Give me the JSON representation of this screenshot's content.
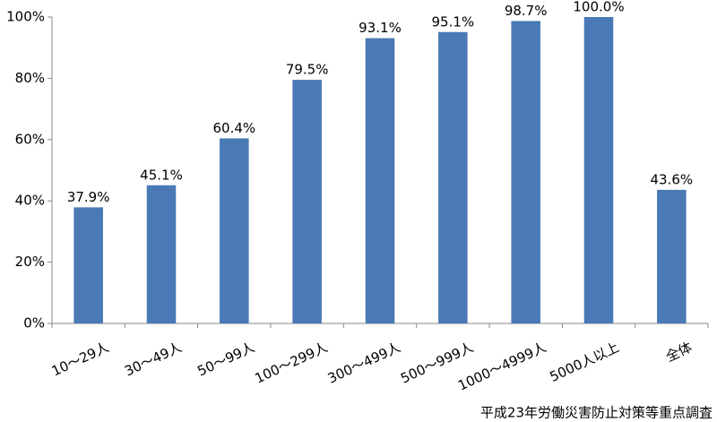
{
  "chart_data": {
    "type": "bar",
    "categories": [
      "10〜29人",
      "30〜49人",
      "50〜99人",
      "100〜299人",
      "300〜499人",
      "500〜999人",
      "1000〜4999人",
      "5000人以上",
      "全体"
    ],
    "values": [
      37.9,
      45.1,
      60.4,
      79.5,
      93.1,
      95.1,
      98.7,
      100.0,
      43.6
    ],
    "value_labels": [
      "37.9%",
      "45.1%",
      "60.4%",
      "79.5%",
      "93.1%",
      "95.1%",
      "98.7%",
      "100.0%",
      "43.6%"
    ],
    "color": "#4a7ab5",
    "ylim": [
      0,
      100
    ],
    "yticks": [
      {
        "value": 0,
        "label": "0%"
      },
      {
        "value": 20,
        "label": "20%"
      },
      {
        "value": 40,
        "label": "40%"
      },
      {
        "value": 60,
        "label": "60%"
      },
      {
        "value": 80,
        "label": "80%"
      },
      {
        "value": 100,
        "label": "100%"
      }
    ],
    "grid": false,
    "source": "平成23年労働災害防止対策等重点調査"
  }
}
